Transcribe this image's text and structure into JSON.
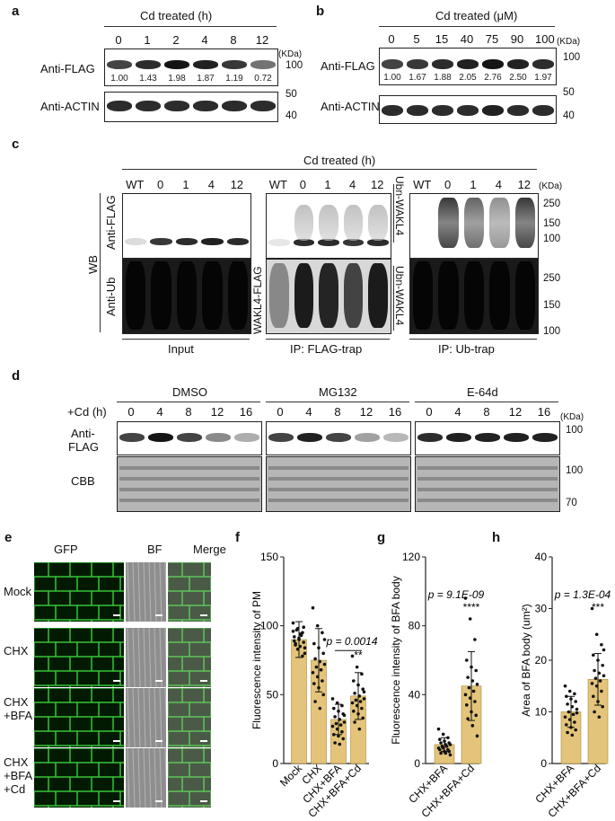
{
  "a": {
    "letter": "a",
    "header": "Cd treated (h)",
    "lanes": [
      "0",
      "1",
      "2",
      "4",
      "8",
      "12"
    ],
    "row1_label": "Anti-FLAG",
    "row2_label": "Anti-ACTIN",
    "quant": [
      "1.00",
      "1.43",
      "1.98",
      "1.87",
      "1.19",
      "0.72"
    ],
    "unit": "(KDa)",
    "mw_100": "100",
    "mw_50": "50",
    "mw_40": "40"
  },
  "b": {
    "letter": "b",
    "header": "Cd treated (μM)",
    "lanes": [
      "0",
      "5",
      "15",
      "40",
      "75",
      "90",
      "100"
    ],
    "row1_label": "Anti-FLAG",
    "row2_label": "Anti-ACTIN",
    "quant": [
      "1.00",
      "1.67",
      "1.88",
      "2.05",
      "2.76",
      "2.50",
      "1.97"
    ],
    "unit": "(KDa)",
    "mw_100": "100",
    "mw_50": "50",
    "mw_40": "40"
  },
  "c": {
    "letter": "c",
    "header": "Cd treated (h)",
    "lanes": [
      "WT",
      "0",
      "1",
      "4",
      "12"
    ],
    "wb": "WB",
    "anti_flag": "Anti-FLAG",
    "anti_ub": "Anti-Ub",
    "wakl4_flag": "WAKL4-FLAG",
    "ubn_wakl4_top": "Ubn-WAKL4",
    "ubn_wakl4_bottom": "Ubn-WAKL4",
    "input": "Input",
    "ip_flag": "IP: FLAG-trap",
    "ip_ub": "IP: Ub-trap",
    "unit": "(KDa)",
    "mw": [
      "250",
      "150",
      "100",
      "250",
      "150",
      "100"
    ]
  },
  "d": {
    "letter": "d",
    "groups": [
      "DMSO",
      "MG132",
      "E-64d"
    ],
    "cd_label": "+Cd (h)",
    "lanes": [
      "0",
      "4",
      "8",
      "12",
      "16"
    ],
    "row1_label_1": "Anti-",
    "row1_label_2": "FLAG",
    "row2_label": "CBB",
    "unit": "(KDa)",
    "mw": [
      "100",
      "100",
      "70"
    ]
  },
  "e": {
    "letter": "e",
    "columns": [
      "GFP",
      "BF",
      "Merge"
    ],
    "rows": [
      [
        "Mock"
      ],
      [
        "CHX"
      ],
      [
        "CHX",
        "+BFA"
      ],
      [
        "CHX",
        "+BFA",
        "+Cd"
      ]
    ]
  },
  "f": {
    "letter": "f",
    "annotation_p": "p = 0.0014",
    "annotation_sig": "**"
  },
  "g": {
    "letter": "g",
    "annotation_p": "p = 9.1E-09",
    "annotation_sig": "****"
  },
  "h": {
    "letter": "h",
    "annotation_p": "p = 1.3E-04",
    "annotation_sig": "***"
  },
  "chart_data": [
    {
      "type": "bar",
      "panel": "f",
      "categories": [
        "Mock",
        "CHX",
        "CHX+BFA",
        "CHX+BFA+Cd"
      ],
      "values": [
        90,
        75,
        32,
        49
      ],
      "errors": [
        13,
        23,
        11,
        17
      ],
      "ylabel": "Fluorescence intensity of PM",
      "ylim": [
        0,
        150
      ],
      "yticks": [
        0,
        50,
        100,
        150
      ],
      "bar_color": "#e3c47a",
      "points": [
        [
          102,
          98,
          95,
          92,
          90,
          88,
          86,
          85,
          80,
          97,
          93,
          96,
          83,
          78,
          89,
          91,
          99,
          87,
          94,
          84
        ],
        [
          113,
          100,
          95,
          87,
          84,
          80,
          76,
          74,
          72,
          70,
          68,
          66,
          63,
          60,
          58,
          55,
          50,
          45,
          40,
          90
        ],
        [
          47,
          44,
          42,
          40,
          38,
          36,
          34,
          32,
          30,
          29,
          28,
          27,
          25,
          23,
          21,
          20,
          18,
          15,
          14,
          35
        ],
        [
          78,
          70,
          65,
          60,
          57,
          54,
          51,
          49,
          47,
          46,
          45,
          44,
          42,
          40,
          38,
          36,
          33,
          30,
          25,
          52
        ]
      ],
      "comparison": {
        "from": 2,
        "to": 3,
        "p": "p = 0.0014",
        "sig": "**"
      }
    },
    {
      "type": "bar",
      "panel": "g",
      "categories": [
        "CHX+BFA",
        "CHX+BFA+Cd"
      ],
      "values": [
        11,
        45
      ],
      "errors": [
        4,
        20
      ],
      "ylabel": "Fluorescence intensity of BFA body",
      "ylim": [
        0,
        120
      ],
      "yticks": [
        0,
        40,
        80,
        120
      ],
      "bar_color": "#e3c47a",
      "points": [
        [
          20,
          17,
          15,
          14,
          13,
          12,
          12,
          11,
          11,
          10,
          10,
          9,
          9,
          8,
          8,
          7,
          7,
          6,
          6,
          5
        ],
        [
          96,
          84,
          72,
          60,
          56,
          54,
          50,
          48,
          46,
          44,
          42,
          40,
          38,
          36,
          34,
          30,
          28,
          26,
          22,
          16
        ]
      ],
      "p": "p = 9.1E-09",
      "sig": "****"
    },
    {
      "type": "bar",
      "panel": "h",
      "categories": [
        "CHX+BFA",
        "CHX+BFA+Cd"
      ],
      "values": [
        10,
        16.3
      ],
      "errors": [
        3,
        5
      ],
      "ylabel": "Area of BFA body (um²)",
      "ylim": [
        0,
        40
      ],
      "yticks": [
        0,
        10,
        20,
        30,
        40
      ],
      "bar_color": "#e3c47a",
      "points": [
        [
          15,
          14,
          13.5,
          13,
          12.5,
          12,
          11.5,
          11,
          10.5,
          10,
          9.5,
          9,
          8.5,
          8,
          7.5,
          7,
          6.5,
          6,
          5.5,
          9.8
        ],
        [
          30,
          25,
          23,
          21,
          20,
          19,
          18,
          17.5,
          17,
          16.5,
          16,
          15.5,
          15,
          14,
          13,
          12,
          11,
          10,
          9,
          22
        ]
      ],
      "p": "p = 1.3E-04",
      "sig": "***"
    }
  ]
}
